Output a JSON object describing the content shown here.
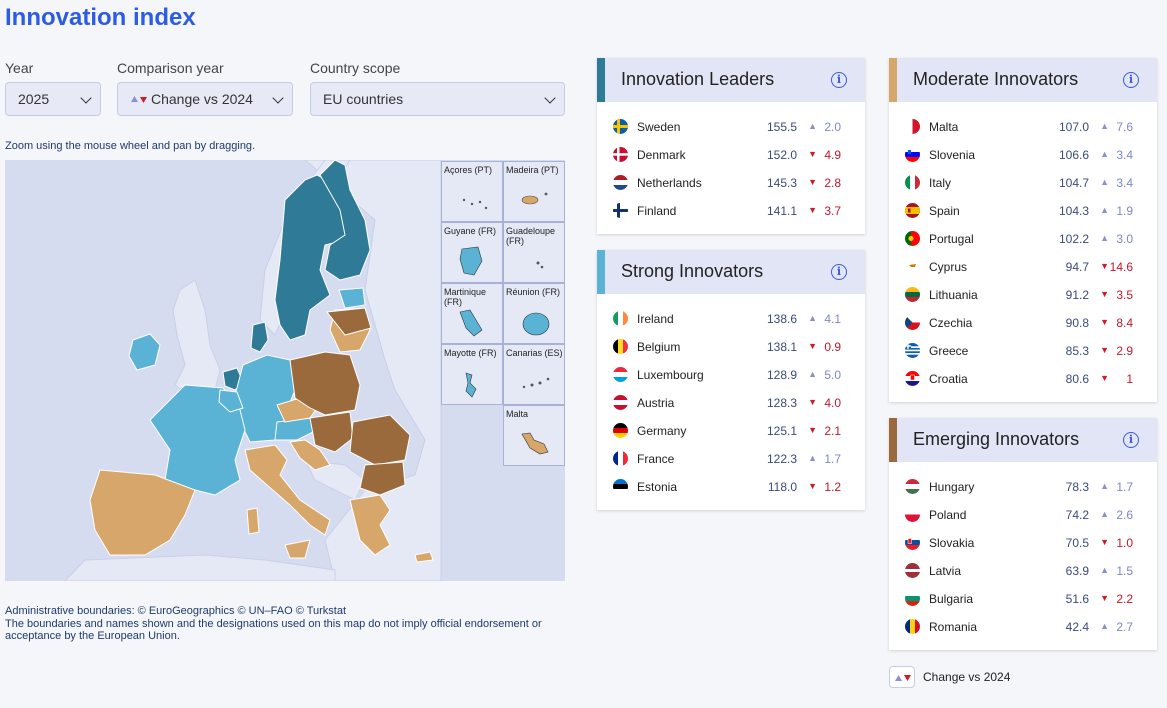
{
  "page_title": "Innovation index",
  "controls": {
    "year_label": "Year",
    "year_value": "2025",
    "comparison_label": "Comparison year",
    "comparison_value": "Change vs 2024",
    "scope_label": "Country scope",
    "scope_value": "EU countries"
  },
  "map": {
    "hint": "Zoom using the mouse wheel and pan by dragging.",
    "insets": [
      "Açores (PT)",
      "Madeira (PT)",
      "Guyane (FR)",
      "Guadeloupe (FR)",
      "Martinique (FR)",
      "Réunion (FR)",
      "Mayotte (FR)",
      "Canarias (ES)",
      "Malta"
    ],
    "colors": {
      "innovation_leaders": "#2e7a97",
      "strong_innovators": "#5ab3d4",
      "moderate_innovators": "#d6a66b",
      "emerging_innovators": "#9a6a3c",
      "sea": "#d6dcef",
      "land_non_eu": "#e5e9f6"
    },
    "attribution_1": "Administrative boundaries: © EuroGeographics © UN–FAO © Turkstat",
    "attribution_2": "The boundaries and names shown and the designations used on this map do not imply official endorsement or acceptance by the European Union."
  },
  "groups": {
    "leaders": {
      "title": "Innovation Leaders",
      "color": "#2e7a97",
      "rows": [
        {
          "name": "Sweden",
          "score": "155.5",
          "dir": "up",
          "change": "2.0"
        },
        {
          "name": "Denmark",
          "score": "152.0",
          "dir": "down",
          "change": "4.9"
        },
        {
          "name": "Netherlands",
          "score": "145.3",
          "dir": "down",
          "change": "2.8"
        },
        {
          "name": "Finland",
          "score": "141.1",
          "dir": "down",
          "change": "3.7"
        }
      ]
    },
    "strong": {
      "title": "Strong Innovators",
      "color": "#5ab3d4",
      "rows": [
        {
          "name": "Ireland",
          "score": "138.6",
          "dir": "up",
          "change": "4.1"
        },
        {
          "name": "Belgium",
          "score": "138.1",
          "dir": "down",
          "change": "0.9"
        },
        {
          "name": "Luxembourg",
          "score": "128.9",
          "dir": "up",
          "change": "5.0"
        },
        {
          "name": "Austria",
          "score": "128.3",
          "dir": "down",
          "change": "4.0"
        },
        {
          "name": "Germany",
          "score": "125.1",
          "dir": "down",
          "change": "2.1"
        },
        {
          "name": "France",
          "score": "122.3",
          "dir": "up",
          "change": "1.7"
        },
        {
          "name": "Estonia",
          "score": "118.0",
          "dir": "down",
          "change": "1.2"
        }
      ]
    },
    "moderate": {
      "title": "Moderate Innovators",
      "color": "#d6a66b",
      "rows": [
        {
          "name": "Malta",
          "score": "107.0",
          "dir": "up",
          "change": "7.6"
        },
        {
          "name": "Slovenia",
          "score": "106.6",
          "dir": "up",
          "change": "3.4"
        },
        {
          "name": "Italy",
          "score": "104.7",
          "dir": "up",
          "change": "3.4"
        },
        {
          "name": "Spain",
          "score": "104.3",
          "dir": "up",
          "change": "1.9"
        },
        {
          "name": "Portugal",
          "score": "102.2",
          "dir": "up",
          "change": "3.0"
        },
        {
          "name": "Cyprus",
          "score": "94.7",
          "dir": "down",
          "change": "14.6"
        },
        {
          "name": "Lithuania",
          "score": "91.2",
          "dir": "down",
          "change": "3.5"
        },
        {
          "name": "Czechia",
          "score": "90.8",
          "dir": "down",
          "change": "8.4"
        },
        {
          "name": "Greece",
          "score": "85.3",
          "dir": "down",
          "change": "2.9"
        },
        {
          "name": "Croatia",
          "score": "80.6",
          "dir": "down",
          "change": "1"
        }
      ]
    },
    "emerging": {
      "title": "Emerging Innovators",
      "color": "#9a6a3c",
      "rows": [
        {
          "name": "Hungary",
          "score": "78.3",
          "dir": "up",
          "change": "1.7"
        },
        {
          "name": "Poland",
          "score": "74.2",
          "dir": "up",
          "change": "2.6"
        },
        {
          "name": "Slovakia",
          "score": "70.5",
          "dir": "down",
          "change": "1.0"
        },
        {
          "name": "Latvia",
          "score": "63.9",
          "dir": "up",
          "change": "1.5"
        },
        {
          "name": "Bulgaria",
          "score": "51.6",
          "dir": "down",
          "change": "2.2"
        },
        {
          "name": "Romania",
          "score": "42.4",
          "dir": "up",
          "change": "2.7"
        }
      ]
    }
  },
  "legend": {
    "label": "Change vs 2024"
  }
}
